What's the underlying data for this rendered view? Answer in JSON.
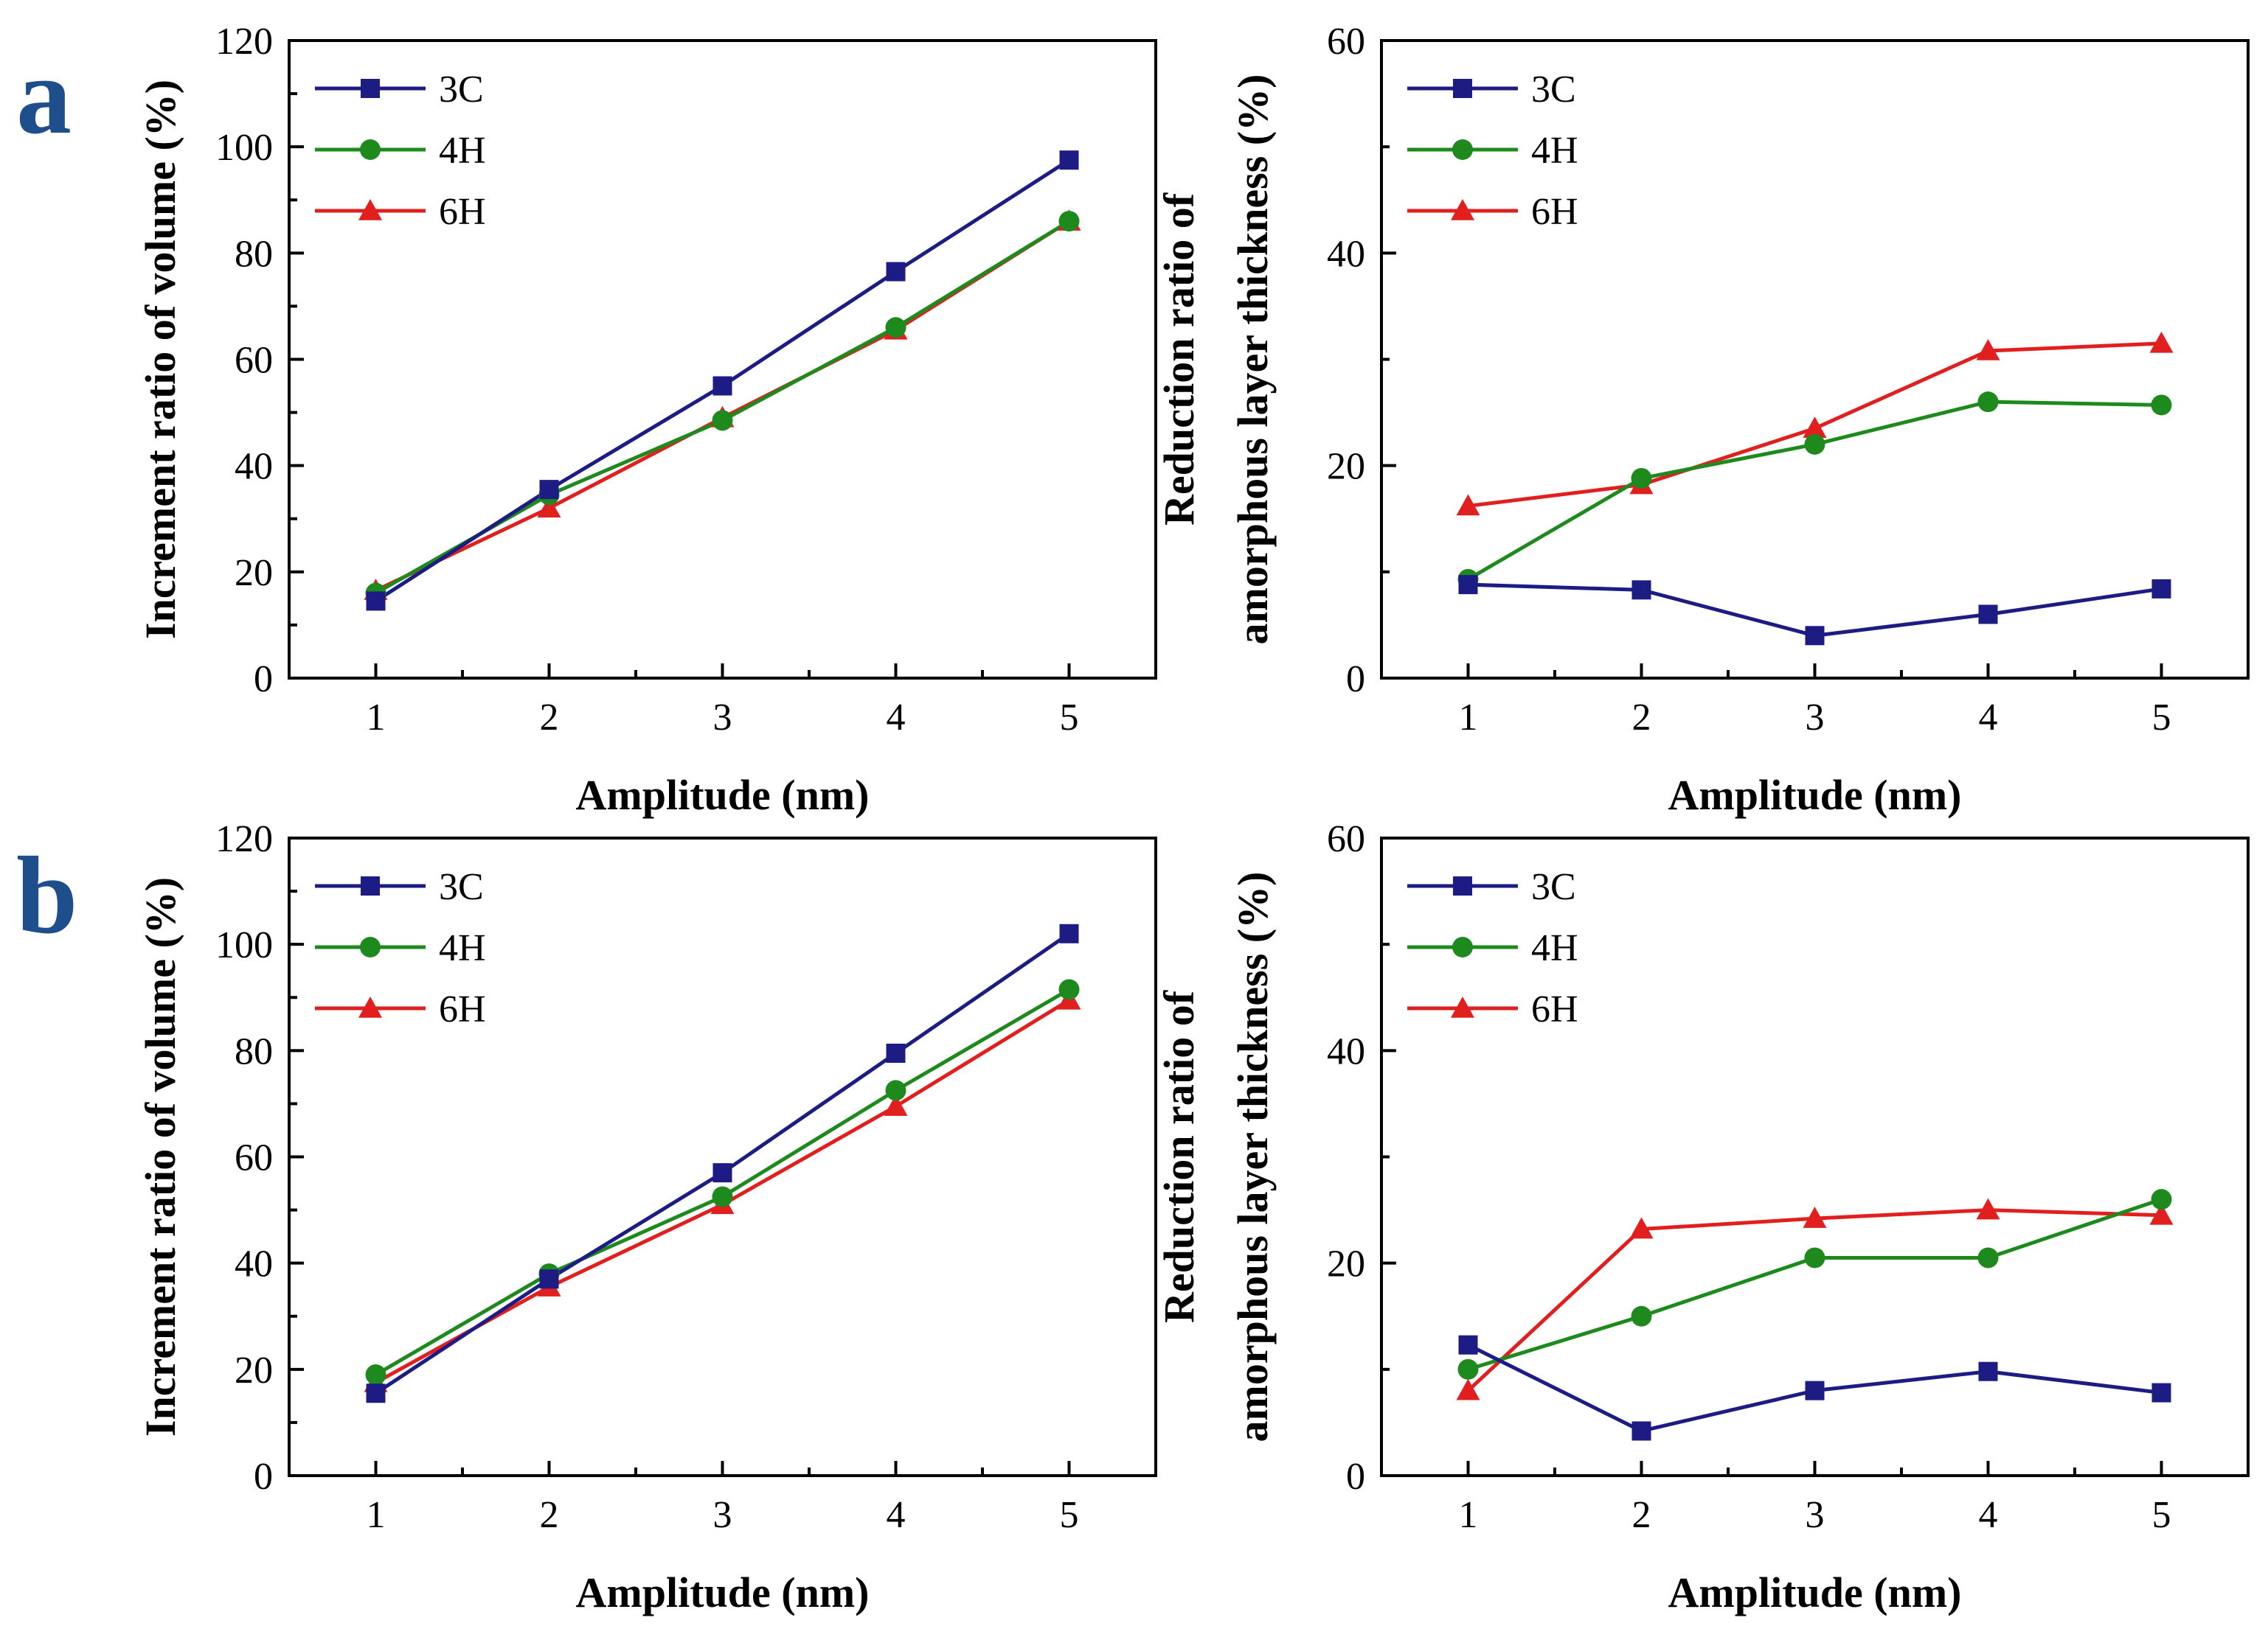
{
  "figure": {
    "panel_labels": [
      "a",
      "b"
    ],
    "colors": {
      "3C": "#1c1c84",
      "4H": "#1e8a1e",
      "6H": "#e21f1f"
    }
  },
  "chart_data": [
    {
      "id": "a-left",
      "type": "line",
      "xlabel": "Amplitude (nm)",
      "ylabel": [
        "Increment ratio of volume (%)"
      ],
      "x": [
        1,
        2,
        3,
        4,
        5
      ],
      "xlim": [
        0.5,
        5.5
      ],
      "ylim": [
        0,
        120
      ],
      "yticks": [
        0,
        20,
        40,
        60,
        80,
        100,
        120
      ],
      "xticks": [
        1,
        2,
        3,
        4,
        5
      ],
      "legend": "top-left",
      "series": [
        {
          "name": "3C",
          "marker": "square",
          "values": [
            14.5,
            35.5,
            55,
            76.5,
            97.5
          ]
        },
        {
          "name": "4H",
          "marker": "circle",
          "values": [
            16,
            34.5,
            48.5,
            66,
            86
          ]
        },
        {
          "name": "6H",
          "marker": "triangle",
          "values": [
            16.5,
            32,
            49,
            65.5,
            86
          ]
        }
      ]
    },
    {
      "id": "a-right",
      "type": "line",
      "xlabel": "Amplitude (nm)",
      "ylabel": [
        "Reduction ratio of",
        "amorphous layer thickness (%)"
      ],
      "x": [
        1,
        2,
        3,
        4,
        5
      ],
      "xlim": [
        0.5,
        5.5
      ],
      "ylim": [
        0,
        60
      ],
      "yticks": [
        0,
        20,
        40,
        60
      ],
      "xticks": [
        1,
        2,
        3,
        4,
        5
      ],
      "legend": "top-left",
      "series": [
        {
          "name": "3C",
          "marker": "square",
          "values": [
            8.8,
            8.3,
            4,
            6,
            8.4
          ]
        },
        {
          "name": "4H",
          "marker": "circle",
          "values": [
            9.3,
            18.8,
            22,
            26,
            25.7
          ]
        },
        {
          "name": "6H",
          "marker": "triangle",
          "values": [
            16.2,
            18.2,
            23.5,
            30.8,
            31.5
          ]
        }
      ]
    },
    {
      "id": "b-left",
      "type": "line",
      "xlabel": "Amplitude (nm)",
      "ylabel": [
        "Increment ratio of volume (%)"
      ],
      "x": [
        1,
        2,
        3,
        4,
        5
      ],
      "xlim": [
        0.5,
        5.5
      ],
      "ylim": [
        0,
        120
      ],
      "yticks": [
        0,
        20,
        40,
        60,
        80,
        100,
        120
      ],
      "xticks": [
        1,
        2,
        3,
        4,
        5
      ],
      "legend": "top-left",
      "series": [
        {
          "name": "3C",
          "marker": "square",
          "values": [
            15.5,
            37,
            57,
            79.5,
            102
          ]
        },
        {
          "name": "4H",
          "marker": "circle",
          "values": [
            19,
            38,
            52.5,
            72.5,
            91.5
          ]
        },
        {
          "name": "6H",
          "marker": "triangle",
          "values": [
            17.5,
            35.5,
            51,
            69.5,
            89.5
          ]
        }
      ]
    },
    {
      "id": "b-right",
      "type": "line",
      "xlabel": "Amplitude (nm)",
      "ylabel": [
        "Reduction ratio of",
        "amorphous layer thickness (%)"
      ],
      "x": [
        1,
        2,
        3,
        4,
        5
      ],
      "xlim": [
        0.5,
        5.5
      ],
      "ylim": [
        0,
        60
      ],
      "yticks": [
        0,
        20,
        40,
        60
      ],
      "xticks": [
        1,
        2,
        3,
        4,
        5
      ],
      "legend": "top-left",
      "series": [
        {
          "name": "3C",
          "marker": "square",
          "values": [
            12.3,
            4.2,
            8,
            9.8,
            7.8
          ]
        },
        {
          "name": "4H",
          "marker": "circle",
          "values": [
            10,
            15,
            20.5,
            20.5,
            26
          ]
        },
        {
          "name": "6H",
          "marker": "triangle",
          "values": [
            8,
            23.2,
            24.2,
            25,
            24.5
          ]
        }
      ]
    }
  ]
}
